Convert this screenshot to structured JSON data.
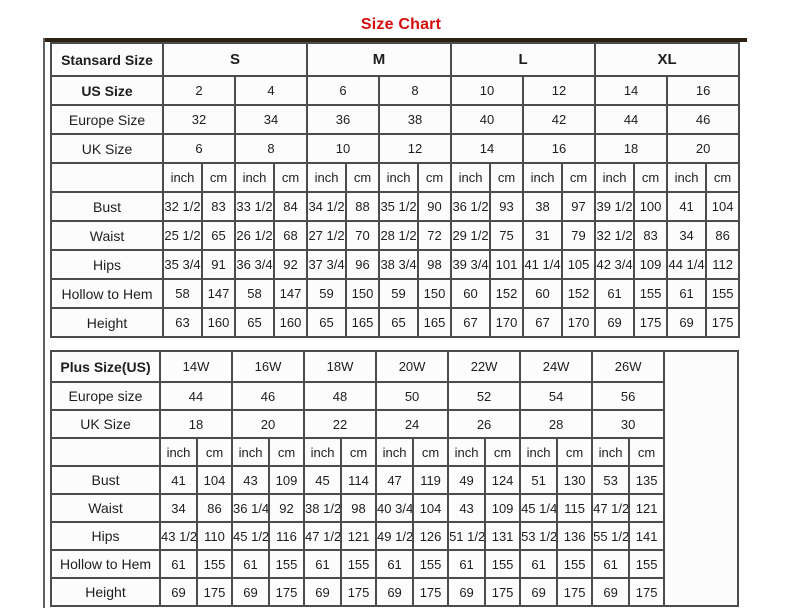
{
  "title": "Size Chart",
  "colors": {
    "title_red": "#d40d0d",
    "border_gray": "#4c4c4c",
    "top_rule_brown": "#2e2114",
    "frame_line_gray": "#5f5f5f"
  },
  "standard_table": {
    "header_label": "Stansard Size",
    "size_groups": [
      "S",
      "M",
      "L",
      "XL"
    ],
    "us_size_label": "US Size",
    "us_sizes": [
      "2",
      "4",
      "6",
      "8",
      "10",
      "12",
      "14",
      "16"
    ],
    "europe_label": "Europe Size",
    "europe_sizes": [
      "32",
      "34",
      "36",
      "38",
      "40",
      "42",
      "44",
      "46"
    ],
    "uk_label": "UK Size",
    "uk_sizes": [
      "6",
      "8",
      "10",
      "12",
      "14",
      "16",
      "18",
      "20"
    ],
    "units": {
      "inch": "inch",
      "cm": "cm"
    },
    "measurements": [
      {
        "label": "Bust",
        "values": [
          "32 1/2",
          "83",
          "33 1/2",
          "84",
          "34 1/2",
          "88",
          "35 1/2",
          "90",
          "36 1/2",
          "93",
          "38",
          "97",
          "39 1/2",
          "100",
          "41",
          "104"
        ]
      },
      {
        "label": "Waist",
        "values": [
          "25 1/2",
          "65",
          "26 1/2",
          "68",
          "27 1/2",
          "70",
          "28 1/2",
          "72",
          "29 1/2",
          "75",
          "31",
          "79",
          "32 1/2",
          "83",
          "34",
          "86"
        ]
      },
      {
        "label": "Hips",
        "values": [
          "35 3/4",
          "91",
          "36 3/4",
          "92",
          "37 3/4",
          "96",
          "38 3/4",
          "98",
          "39 3/4",
          "101",
          "41 1/4",
          "105",
          "42 3/4",
          "109",
          "44 1/4",
          "112"
        ]
      },
      {
        "label": "Hollow to Hem",
        "values": [
          "58",
          "147",
          "58",
          "147",
          "59",
          "150",
          "59",
          "150",
          "60",
          "152",
          "60",
          "152",
          "61",
          "155",
          "61",
          "155"
        ]
      },
      {
        "label": "Height",
        "values": [
          "63",
          "160",
          "65",
          "160",
          "65",
          "165",
          "65",
          "165",
          "67",
          "170",
          "67",
          "170",
          "69",
          "175",
          "69",
          "175"
        ]
      }
    ]
  },
  "plus_table": {
    "header_label": "Plus Size(US)",
    "plus_sizes": [
      "14W",
      "16W",
      "18W",
      "20W",
      "22W",
      "24W",
      "26W"
    ],
    "europe_label": "Europe size",
    "europe_sizes": [
      "44",
      "46",
      "48",
      "50",
      "52",
      "54",
      "56"
    ],
    "uk_label": "UK Size",
    "uk_sizes": [
      "18",
      "20",
      "22",
      "24",
      "26",
      "28",
      "30"
    ],
    "units": {
      "inch": "inch",
      "cm": "cm"
    },
    "measurements": [
      {
        "label": "Bust",
        "values": [
          "41",
          "104",
          "43",
          "109",
          "45",
          "114",
          "47",
          "119",
          "49",
          "124",
          "51",
          "130",
          "53",
          "135"
        ]
      },
      {
        "label": "Waist",
        "values": [
          "34",
          "86",
          "36 1/4",
          "92",
          "38 1/2",
          "98",
          "40 3/4",
          "104",
          "43",
          "109",
          "45 1/4",
          "115",
          "47 1/2",
          "121"
        ]
      },
      {
        "label": "Hips",
        "values": [
          "43 1/2",
          "110",
          "45 1/2",
          "116",
          "47 1/2",
          "121",
          "49 1/2",
          "126",
          "51 1/2",
          "131",
          "53 1/2",
          "136",
          "55 1/2",
          "141"
        ]
      },
      {
        "label": "Hollow to Hem",
        "values": [
          "61",
          "155",
          "61",
          "155",
          "61",
          "155",
          "61",
          "155",
          "61",
          "155",
          "61",
          "155",
          "61",
          "155"
        ]
      },
      {
        "label": "Height",
        "values": [
          "69",
          "175",
          "69",
          "175",
          "69",
          "175",
          "69",
          "175",
          "69",
          "175",
          "69",
          "175",
          "69",
          "175"
        ]
      }
    ]
  }
}
